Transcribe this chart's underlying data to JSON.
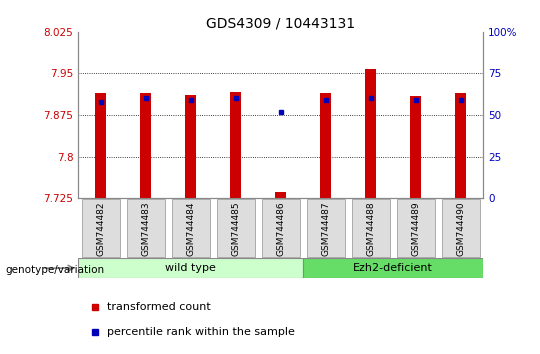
{
  "title": "GDS4309 / 10443131",
  "samples": [
    "GSM744482",
    "GSM744483",
    "GSM744484",
    "GSM744485",
    "GSM744486",
    "GSM744487",
    "GSM744488",
    "GSM744489",
    "GSM744490"
  ],
  "red_values": [
    7.915,
    7.915,
    7.912,
    7.916,
    7.736,
    7.914,
    7.958,
    7.909,
    7.914
  ],
  "blue_values": [
    58,
    60,
    59,
    60,
    52,
    59,
    60,
    59,
    59
  ],
  "y_min": 7.725,
  "y_max": 8.025,
  "y_ticks": [
    7.725,
    7.8,
    7.875,
    7.95,
    8.025
  ],
  "y_tick_labels": [
    "7.725",
    "7.8",
    "7.875",
    "7.95",
    "8.025"
  ],
  "y2_ticks": [
    0,
    25,
    50,
    75,
    100
  ],
  "y2_tick_labels": [
    "0",
    "25",
    "50",
    "75",
    "100%"
  ],
  "left_color": "#cc0000",
  "right_color": "#0000bb",
  "blue_square_color": "#0000bb",
  "red_bar_color": "#cc0000",
  "wild_type_label": "wild type",
  "ezh2_label": "Ezh2-deficient",
  "group_color_wt": "#ccffcc",
  "group_color_ezh2": "#66dd66",
  "group_edge_color": "#888888",
  "legend_red_label": "transformed count",
  "legend_blue_label": "percentile rank within the sample",
  "genotype_label": "genotype/variation",
  "arrow_color": "#888888",
  "bar_width": 0.25,
  "cell_bg": "#dddddd",
  "cell_edge": "#aaaaaa"
}
